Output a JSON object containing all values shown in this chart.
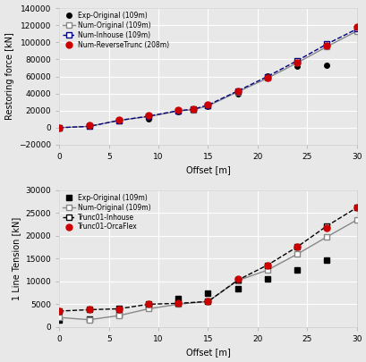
{
  "upper": {
    "ylabel": "Restoring force [kN]",
    "xlabel": "Offset [m]",
    "ylim": [
      -20000,
      140000
    ],
    "xlim": [
      0,
      30
    ],
    "yticks": [
      -20000,
      0,
      20000,
      40000,
      60000,
      80000,
      100000,
      120000,
      140000
    ],
    "xticks": [
      0,
      5,
      10,
      15,
      20,
      25,
      30
    ],
    "series": [
      {
        "label": "Exp-Original (109m)",
        "x": [
          0,
          3,
          6,
          9,
          12,
          15,
          18,
          21,
          24,
          27
        ],
        "y": [
          0,
          1500,
          8000,
          10000,
          19000,
          25000,
          40000,
          61000,
          72000,
          73000
        ],
        "color": "black",
        "linestyle": "none",
        "marker": "o",
        "markersize": 4,
        "linewidth": 0,
        "mfc": "black",
        "mec": "black"
      },
      {
        "label": "Num-Original (109m)",
        "x": [
          0,
          3,
          6,
          9,
          12,
          13.5,
          15,
          18,
          21,
          24,
          27,
          30
        ],
        "y": [
          0,
          1500,
          8500,
          13000,
          19500,
          21000,
          25500,
          42000,
          58000,
          76000,
          95000,
          113000
        ],
        "color": "#888888",
        "linestyle": "-",
        "marker": "s",
        "markersize": 4,
        "linewidth": 1.0,
        "mfc": "white",
        "mec": "#888888"
      },
      {
        "label": "Num-Inhouse (109m)",
        "x": [
          0,
          3,
          6,
          9,
          12,
          13.5,
          15,
          18,
          21,
          24,
          27,
          30
        ],
        "y": [
          0,
          1500,
          8500,
          13500,
          20000,
          21500,
          26500,
          43000,
          60000,
          78500,
          98000,
          115500
        ],
        "color": "#000080",
        "linestyle": "--",
        "marker": "s",
        "markersize": 4,
        "linewidth": 1.0,
        "mfc": "white",
        "mec": "#000080"
      },
      {
        "label": "Num-ReverseTrunc (208m)",
        "x": [
          0,
          3,
          6,
          9,
          12,
          13.5,
          15,
          18,
          21,
          24,
          27,
          30
        ],
        "y": [
          300,
          3500,
          9500,
          14000,
          20500,
          21500,
          27000,
          42500,
          58500,
          76000,
          96000,
          118000
        ],
        "color": "#cc0000",
        "linestyle": "none",
        "marker": "o",
        "markersize": 5,
        "linewidth": 0,
        "mfc": "#cc0000",
        "mec": "#cc0000"
      }
    ]
  },
  "lower": {
    "ylabel": "1 Line Tension [kN]",
    "xlabel": "Offset [m]",
    "ylim": [
      0,
      30000
    ],
    "xlim": [
      0,
      30
    ],
    "yticks": [
      0,
      5000,
      10000,
      15000,
      20000,
      25000,
      30000
    ],
    "xticks": [
      0,
      5,
      10,
      15,
      20,
      25,
      30
    ],
    "series": [
      {
        "label": "Exp-Original (109m)",
        "x": [
          0,
          3,
          6,
          9,
          12,
          15,
          18,
          21,
          24,
          27
        ],
        "y": [
          1500,
          1800,
          2700,
          4500,
          6200,
          7500,
          8500,
          10500,
          12500,
          14700
        ],
        "color": "black",
        "linestyle": "none",
        "marker": "s",
        "markersize": 4,
        "linewidth": 0,
        "mfc": "black",
        "mec": "black"
      },
      {
        "label": "Num-Original (109m)",
        "x": [
          0,
          3,
          6,
          9,
          12,
          15,
          18,
          21,
          24,
          27,
          30
        ],
        "y": [
          2100,
          1600,
          2500,
          4000,
          5000,
          5600,
          10200,
          12500,
          16000,
          19800,
          23500
        ],
        "color": "#888888",
        "linestyle": "-",
        "marker": "s",
        "markersize": 4,
        "linewidth": 1.0,
        "mfc": "white",
        "mec": "#888888"
      },
      {
        "label": "Trunc01-Inhouse",
        "x": [
          0,
          3,
          6,
          9,
          12,
          15,
          18,
          21,
          24,
          27,
          30
        ],
        "y": [
          3500,
          3800,
          4000,
          5000,
          5200,
          5600,
          10300,
          13600,
          17600,
          22200,
          26200
        ],
        "color": "black",
        "linestyle": "--",
        "marker": "s",
        "markersize": 4,
        "linewidth": 1.0,
        "mfc": "white",
        "mec": "black"
      },
      {
        "label": "Trunc01-OrcaFlex",
        "x": [
          0,
          3,
          6,
          9,
          12,
          15,
          18,
          21,
          24,
          27,
          30
        ],
        "y": [
          3500,
          3800,
          3900,
          5000,
          5300,
          5700,
          10500,
          13600,
          17700,
          21800,
          26300
        ],
        "color": "#cc0000",
        "linestyle": "none",
        "marker": "o",
        "markersize": 5,
        "linewidth": 0,
        "mfc": "#cc0000",
        "mec": "#cc0000"
      }
    ]
  },
  "bg_color": "#e8e8e8",
  "plot_bg": "#e8e8e8",
  "grid_color": "white",
  "font_size": 7.0
}
